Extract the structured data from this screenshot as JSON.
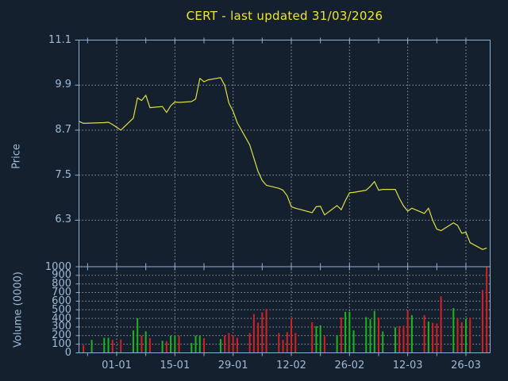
{
  "title": "CERT - last updated 31/03/2026",
  "colors": {
    "background": "#15202e",
    "frame": "#8bb0d4",
    "grid": "#8d97a6",
    "text": "#9dbad8",
    "title_text": "#f0e431",
    "price_line": "#dedd44",
    "volume_up": "#1db41d",
    "volume_down": "#d32121"
  },
  "chart_data": {
    "type": "line+bar",
    "title": "CERT - last updated 31/03/2026",
    "price_panel": {
      "ylabel": "Price",
      "yticks": [
        11.1,
        9.9,
        8.7,
        7.5,
        6.3
      ],
      "ylim": [
        5.06,
        11.1
      ],
      "grid": true
    },
    "volume_panel": {
      "ylabel": "Volume (0000)",
      "yticks": [
        1000,
        900,
        800,
        700,
        600,
        500,
        400,
        300,
        200,
        100,
        0
      ],
      "ylim": [
        0,
        1000
      ],
      "grid": true
    },
    "x_axis": {
      "ticks": [
        {
          "label": "01-01",
          "date": "2026-01-01"
        },
        {
          "label": "15-01",
          "date": "2026-01-15"
        },
        {
          "label": "29-01",
          "date": "2026-01-29"
        },
        {
          "label": "12-02",
          "date": "2026-02-12"
        },
        {
          "label": "26-02",
          "date": "2026-02-26"
        },
        {
          "label": "12-03",
          "date": "2026-03-12"
        },
        {
          "label": "26-03",
          "date": "2026-03-26"
        }
      ],
      "minor_tick_interval_days": 7,
      "range": [
        "2025-12-23",
        "2026-04-01"
      ]
    },
    "series": {
      "dates": [
        "2025-12-23",
        "2025-12-24",
        "2025-12-26",
        "2025-12-29",
        "2025-12-30",
        "2025-12-31",
        "2026-01-02",
        "2026-01-05",
        "2026-01-06",
        "2026-01-07",
        "2026-01-08",
        "2026-01-09",
        "2026-01-12",
        "2026-01-13",
        "2026-01-14",
        "2026-01-15",
        "2026-01-16",
        "2026-01-19",
        "2026-01-20",
        "2026-01-21",
        "2026-01-22",
        "2026-01-23",
        "2026-01-26",
        "2026-01-27",
        "2026-01-28",
        "2026-01-29",
        "2026-01-30",
        "2026-02-02",
        "2026-02-03",
        "2026-02-04",
        "2026-02-05",
        "2026-02-06",
        "2026-02-09",
        "2026-02-10",
        "2026-02-11",
        "2026-02-12",
        "2026-02-13",
        "2026-02-17",
        "2026-02-18",
        "2026-02-19",
        "2026-02-20",
        "2026-02-23",
        "2026-02-24",
        "2026-02-25",
        "2026-02-26",
        "2026-02-27",
        "2026-03-02",
        "2026-03-03",
        "2026-03-04",
        "2026-03-05",
        "2026-03-06",
        "2026-03-09",
        "2026-03-10",
        "2026-03-11",
        "2026-03-12",
        "2026-03-13",
        "2026-03-16",
        "2026-03-17",
        "2026-03-18",
        "2026-03-19",
        "2026-03-20",
        "2026-03-23",
        "2026-03-24",
        "2026-03-25",
        "2026-03-26",
        "2026-03-27",
        "2026-03-30",
        "2026-03-31"
      ],
      "close": [
        8.93,
        8.88,
        8.89,
        8.9,
        8.91,
        8.85,
        8.7,
        9.02,
        9.56,
        9.49,
        9.63,
        9.3,
        9.33,
        9.17,
        9.35,
        9.45,
        9.44,
        9.46,
        9.53,
        10.08,
        9.99,
        10.04,
        10.1,
        9.89,
        9.42,
        9.2,
        8.9,
        8.31,
        7.95,
        7.6,
        7.36,
        7.23,
        7.15,
        7.1,
        6.95,
        6.66,
        6.62,
        6.5,
        6.66,
        6.67,
        6.44,
        6.69,
        6.58,
        6.82,
        7.03,
        7.04,
        7.1,
        7.2,
        7.33,
        7.1,
        7.12,
        7.12,
        6.88,
        6.68,
        6.54,
        6.62,
        6.48,
        6.62,
        6.3,
        6.06,
        6.02,
        6.23,
        6.16,
        5.95,
        5.98,
        5.7,
        5.52,
        5.56
      ],
      "volume": [
        null,
        90,
        150,
        175,
        175,
        150,
        155,
        260,
        400,
        200,
        250,
        170,
        140,
        135,
        200,
        200,
        200,
        115,
        200,
        200,
        170,
        null,
        160,
        200,
        230,
        200,
        175,
        230,
        450,
        350,
        470,
        510,
        230,
        150,
        240,
        400,
        230,
        355,
        310,
        320,
        195,
        205,
        410,
        476,
        477,
        260,
        415,
        390,
        486,
        409,
        249,
        295,
        310,
        315,
        491,
        437,
        437,
        363,
        348,
        340,
        657,
        520,
        400,
        355,
        395,
        410,
        730,
        995
      ],
      "direction": [
        null,
        "down",
        "up",
        "up",
        "up",
        "down",
        "down",
        "up",
        "up",
        "down",
        "up",
        "down",
        "up",
        "down",
        "up",
        "up",
        "down",
        "up",
        "up",
        "up",
        "down",
        null,
        "up",
        "down",
        "down",
        "down",
        "down",
        "down",
        "down",
        "down",
        "down",
        "down",
        "down",
        "down",
        "down",
        "down",
        "down",
        "down",
        "up",
        "up",
        "down",
        "up",
        "down",
        "up",
        "up",
        "up",
        "up",
        "up",
        "up",
        "down",
        "up",
        "up",
        "down",
        "down",
        "down",
        "up",
        "down",
        "up",
        "down",
        "down",
        "down",
        "up",
        "down",
        "down",
        "up",
        "down",
        "down",
        "down"
      ]
    }
  }
}
